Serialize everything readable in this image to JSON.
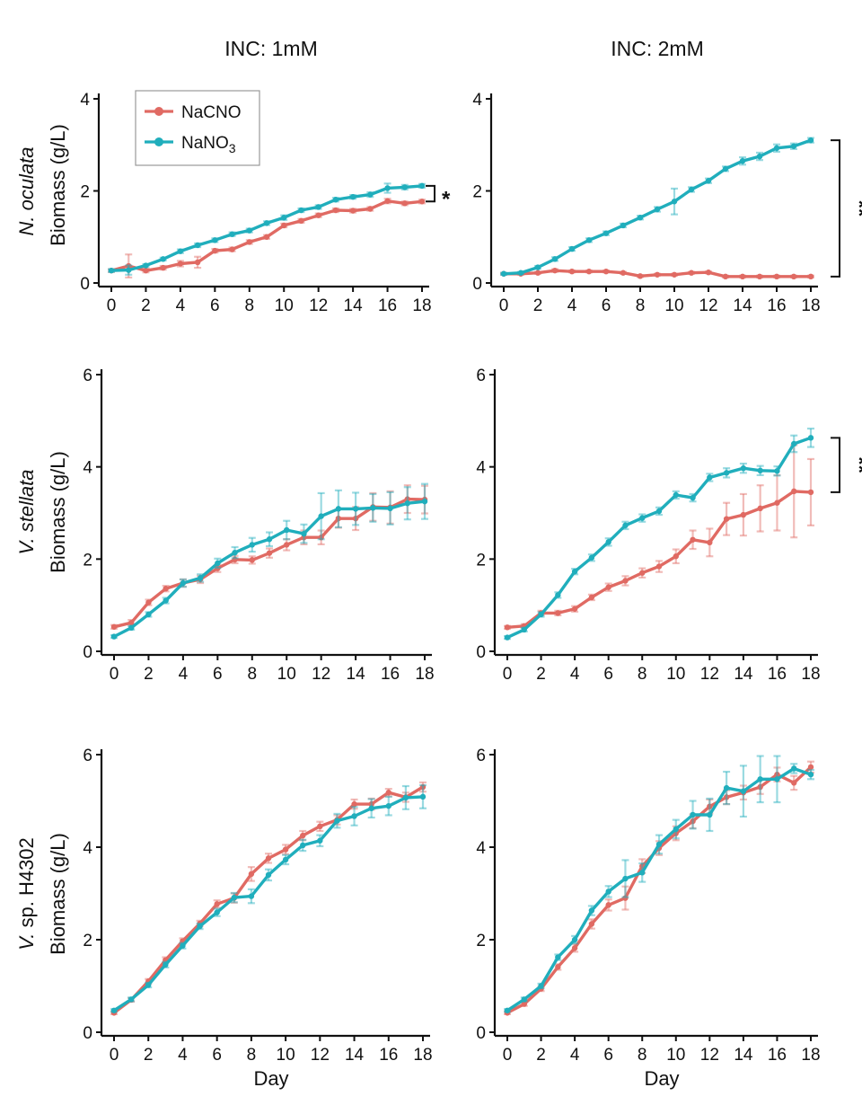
{
  "colors": {
    "nacno": "#e06a63",
    "nano3": "#20aebc"
  },
  "legend": {
    "nacno": "NaCNO",
    "nano3_base": "NaNO",
    "nano3_sub": "3"
  },
  "column_titles": [
    "INC: 1mM",
    "INC: 2mM"
  ],
  "row_labels": [
    {
      "species": "N. oculata",
      "species_italic": "N. oculata",
      "species_rest": "",
      "ylabel": "Biomass (g/L)"
    },
    {
      "species": "V. stellata",
      "species_italic": "V. stellata",
      "species_rest": "",
      "ylabel": "Biomass (g/L)"
    },
    {
      "species": "V. sp. H4302",
      "species_italic": "V.",
      "species_rest": " sp. H4302",
      "ylabel": "Biomass (g/L)"
    }
  ],
  "xlabel": "Day",
  "chart_data": [
    {
      "type": "line",
      "title": "INC: 1mM",
      "row": "N. oculata",
      "xlabel": "",
      "ylabel": "Biomass (g/L)",
      "xlim": [
        0,
        18
      ],
      "ylim": [
        0,
        4
      ],
      "xticks": [
        0,
        2,
        4,
        6,
        8,
        10,
        12,
        14,
        16,
        18
      ],
      "yticks": [
        0,
        2,
        4
      ],
      "x": [
        0,
        1,
        2,
        3,
        4,
        5,
        6,
        7,
        8,
        9,
        10,
        11,
        12,
        13,
        14,
        15,
        16,
        17,
        18
      ],
      "series": [
        {
          "name": "NaCNO",
          "values": [
            0.27,
            0.37,
            0.27,
            0.33,
            0.42,
            0.45,
            0.7,
            0.73,
            0.89,
            1.0,
            1.25,
            1.35,
            1.47,
            1.58,
            1.57,
            1.61,
            1.78,
            1.73,
            1.77
          ],
          "errors": [
            0.03,
            0.25,
            0.04,
            0.04,
            0.06,
            0.12,
            0.04,
            0.04,
            0.04,
            0.04,
            0.04,
            0.04,
            0.04,
            0.04,
            0.04,
            0.04,
            0.05,
            0.04,
            0.04
          ]
        },
        {
          "name": "NaNO3",
          "values": [
            0.27,
            0.28,
            0.38,
            0.52,
            0.69,
            0.82,
            0.93,
            1.06,
            1.14,
            1.3,
            1.42,
            1.58,
            1.65,
            1.81,
            1.87,
            1.92,
            2.06,
            2.08,
            2.11
          ],
          "errors": [
            0.03,
            0.1,
            0.03,
            0.03,
            0.04,
            0.04,
            0.04,
            0.04,
            0.04,
            0.04,
            0.05,
            0.04,
            0.04,
            0.04,
            0.04,
            0.05,
            0.1,
            0.05,
            0.04
          ]
        }
      ],
      "annotation": {
        "text": "*",
        "y_range": [
          1.77,
          2.11
        ]
      }
    },
    {
      "type": "line",
      "title": "INC: 2mM",
      "row": "N. oculata",
      "xlabel": "",
      "ylabel": "",
      "xlim": [
        0,
        18
      ],
      "ylim": [
        0,
        4
      ],
      "xticks": [
        0,
        2,
        4,
        6,
        8,
        10,
        12,
        14,
        16,
        18
      ],
      "yticks": [
        0,
        2,
        4
      ],
      "x": [
        0,
        1,
        2,
        3,
        4,
        5,
        6,
        7,
        8,
        9,
        10,
        11,
        12,
        13,
        14,
        15,
        16,
        17,
        18
      ],
      "series": [
        {
          "name": "NaCNO",
          "values": [
            0.2,
            0.2,
            0.22,
            0.27,
            0.25,
            0.25,
            0.25,
            0.22,
            0.15,
            0.18,
            0.18,
            0.22,
            0.23,
            0.14,
            0.14,
            0.14,
            0.14,
            0.14,
            0.14
          ],
          "errors": [
            0.02,
            0.02,
            0.02,
            0.03,
            0.02,
            0.02,
            0.02,
            0.02,
            0.02,
            0.02,
            0.02,
            0.02,
            0.02,
            0.02,
            0.02,
            0.02,
            0.02,
            0.02,
            0.02
          ]
        },
        {
          "name": "NaNO3",
          "values": [
            0.2,
            0.22,
            0.34,
            0.52,
            0.74,
            0.93,
            1.08,
            1.25,
            1.42,
            1.6,
            1.77,
            2.03,
            2.22,
            2.48,
            2.65,
            2.75,
            2.93,
            2.97,
            3.1
          ],
          "errors": [
            0.02,
            0.02,
            0.03,
            0.04,
            0.04,
            0.04,
            0.04,
            0.04,
            0.04,
            0.05,
            0.28,
            0.05,
            0.05,
            0.05,
            0.08,
            0.08,
            0.08,
            0.06,
            0.05
          ]
        }
      ],
      "annotation": {
        "text": "**",
        "y_range": [
          0.14,
          3.1
        ]
      }
    },
    {
      "type": "line",
      "title": "",
      "row": "V. stellata",
      "xlabel": "",
      "ylabel": "Biomass (g/L)",
      "xlim": [
        0,
        18
      ],
      "ylim": [
        0,
        6
      ],
      "xticks": [
        0,
        2,
        4,
        6,
        8,
        10,
        12,
        14,
        16,
        18
      ],
      "yticks": [
        0,
        2,
        4,
        6
      ],
      "x": [
        0,
        1,
        2,
        3,
        4,
        5,
        6,
        7,
        8,
        9,
        10,
        11,
        12,
        13,
        14,
        15,
        16,
        17,
        18
      ],
      "series": [
        {
          "name": "NaCNO",
          "values": [
            0.53,
            0.62,
            1.06,
            1.36,
            1.48,
            1.56,
            1.8,
            1.99,
            1.98,
            2.13,
            2.31,
            2.47,
            2.47,
            2.88,
            2.88,
            3.13,
            3.12,
            3.3,
            3.29
          ],
          "errors": [
            0.04,
            0.06,
            0.06,
            0.06,
            0.08,
            0.08,
            0.08,
            0.08,
            0.08,
            0.1,
            0.12,
            0.15,
            0.15,
            0.2,
            0.25,
            0.3,
            0.35,
            0.3,
            0.3
          ]
        },
        {
          "name": "NaNO3",
          "values": [
            0.32,
            0.51,
            0.8,
            1.1,
            1.48,
            1.59,
            1.91,
            2.14,
            2.31,
            2.43,
            2.63,
            2.55,
            2.93,
            3.09,
            3.09,
            3.11,
            3.1,
            3.21,
            3.25
          ],
          "errors": [
            0.03,
            0.04,
            0.05,
            0.06,
            0.08,
            0.08,
            0.1,
            0.12,
            0.15,
            0.15,
            0.2,
            0.2,
            0.5,
            0.4,
            0.35,
            0.3,
            0.35,
            0.35,
            0.38
          ]
        }
      ]
    },
    {
      "type": "line",
      "title": "",
      "row": "V. stellata",
      "xlabel": "",
      "ylabel": "",
      "xlim": [
        0,
        18
      ],
      "ylim": [
        0,
        6
      ],
      "xticks": [
        0,
        2,
        4,
        6,
        8,
        10,
        12,
        14,
        16,
        18
      ],
      "yticks": [
        0,
        2,
        4,
        6
      ],
      "x": [
        0,
        1,
        2,
        3,
        4,
        5,
        6,
        7,
        8,
        9,
        10,
        11,
        12,
        13,
        14,
        15,
        16,
        17,
        18
      ],
      "series": [
        {
          "name": "NaCNO",
          "values": [
            0.52,
            0.55,
            0.83,
            0.83,
            0.92,
            1.17,
            1.39,
            1.53,
            1.7,
            1.84,
            2.06,
            2.42,
            2.36,
            2.87,
            2.96,
            3.1,
            3.22,
            3.47,
            3.45
          ],
          "errors": [
            0.03,
            0.04,
            0.05,
            0.05,
            0.06,
            0.06,
            0.08,
            0.1,
            0.1,
            0.12,
            0.15,
            0.2,
            0.3,
            0.35,
            0.45,
            0.5,
            0.6,
            1.0,
            0.72
          ]
        },
        {
          "name": "NaNO3",
          "values": [
            0.3,
            0.47,
            0.8,
            1.22,
            1.73,
            2.03,
            2.37,
            2.73,
            2.89,
            3.04,
            3.39,
            3.33,
            3.77,
            3.87,
            3.97,
            3.92,
            3.91,
            4.5,
            4.63
          ],
          "errors": [
            0.03,
            0.04,
            0.05,
            0.06,
            0.06,
            0.07,
            0.08,
            0.08,
            0.08,
            0.08,
            0.08,
            0.08,
            0.08,
            0.1,
            0.1,
            0.1,
            0.1,
            0.18,
            0.2
          ]
        }
      ],
      "annotation": {
        "text": "**",
        "y_range": [
          3.45,
          4.63
        ]
      }
    },
    {
      "type": "line",
      "title": "",
      "row": "V. sp. H4302",
      "xlabel": "Day",
      "ylabel": "Biomass (g/L)",
      "xlim": [
        0,
        18
      ],
      "ylim": [
        0,
        6
      ],
      "xticks": [
        0,
        2,
        4,
        6,
        8,
        10,
        12,
        14,
        16,
        18
      ],
      "yticks": [
        0,
        2,
        4,
        6
      ],
      "x": [
        0,
        1,
        2,
        3,
        4,
        5,
        6,
        7,
        8,
        9,
        10,
        11,
        12,
        13,
        14,
        15,
        16,
        17,
        18
      ],
      "series": [
        {
          "name": "NaCNO",
          "values": [
            0.42,
            0.7,
            1.1,
            1.56,
            1.97,
            2.35,
            2.77,
            2.9,
            3.42,
            3.76,
            3.95,
            4.25,
            4.45,
            4.59,
            4.93,
            4.93,
            5.18,
            5.08,
            5.3
          ],
          "errors": [
            0.03,
            0.04,
            0.05,
            0.06,
            0.06,
            0.06,
            0.08,
            0.1,
            0.15,
            0.1,
            0.1,
            0.1,
            0.1,
            0.1,
            0.1,
            0.12,
            0.08,
            0.1,
            0.1
          ]
        },
        {
          "name": "NaNO3",
          "values": [
            0.47,
            0.71,
            1.02,
            1.46,
            1.87,
            2.29,
            2.59,
            2.91,
            2.94,
            3.4,
            3.73,
            4.04,
            4.14,
            4.57,
            4.67,
            4.84,
            4.89,
            5.07,
            5.09
          ],
          "errors": [
            0.03,
            0.04,
            0.05,
            0.06,
            0.06,
            0.06,
            0.08,
            0.1,
            0.15,
            0.12,
            0.1,
            0.12,
            0.12,
            0.15,
            0.2,
            0.2,
            0.2,
            0.25,
            0.25
          ]
        }
      ]
    },
    {
      "type": "line",
      "title": "",
      "row": "V. sp. H4302",
      "xlabel": "Day",
      "ylabel": "",
      "xlim": [
        0,
        18
      ],
      "ylim": [
        0,
        6
      ],
      "xticks": [
        0,
        2,
        4,
        6,
        8,
        10,
        12,
        14,
        16,
        18
      ],
      "yticks": [
        0,
        2,
        4,
        6
      ],
      "x": [
        0,
        1,
        2,
        3,
        4,
        5,
        6,
        7,
        8,
        9,
        10,
        11,
        12,
        13,
        14,
        15,
        16,
        17,
        18
      ],
      "series": [
        {
          "name": "NaCNO",
          "values": [
            0.42,
            0.61,
            0.94,
            1.41,
            1.82,
            2.34,
            2.75,
            2.9,
            3.59,
            3.98,
            4.3,
            4.56,
            4.88,
            5.08,
            5.18,
            5.3,
            5.57,
            5.39,
            5.73
          ],
          "errors": [
            0.03,
            0.04,
            0.05,
            0.06,
            0.08,
            0.1,
            0.12,
            0.25,
            0.15,
            0.15,
            0.15,
            0.15,
            0.15,
            0.15,
            0.15,
            0.15,
            0.15,
            0.15,
            0.12
          ]
        },
        {
          "name": "NaNO3",
          "values": [
            0.47,
            0.71,
            1.0,
            1.62,
            2.0,
            2.63,
            3.04,
            3.32,
            3.45,
            4.06,
            4.39,
            4.7,
            4.7,
            5.28,
            5.21,
            5.47,
            5.47,
            5.7,
            5.57
          ],
          "errors": [
            0.03,
            0.04,
            0.05,
            0.06,
            0.08,
            0.1,
            0.12,
            0.4,
            0.2,
            0.2,
            0.2,
            0.3,
            0.35,
            0.35,
            0.55,
            0.5,
            0.5,
            0.1,
            0.1
          ]
        }
      ]
    }
  ]
}
